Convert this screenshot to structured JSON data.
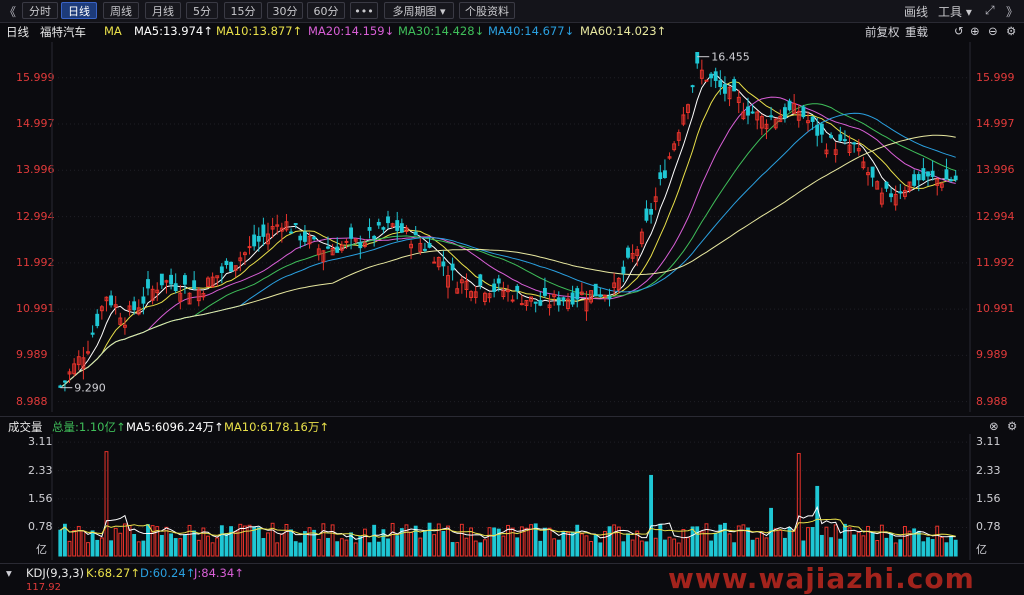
{
  "toolbar": {
    "back_icon": "chevron-left-icon",
    "tabs": [
      {
        "label": "分时",
        "active": false
      },
      {
        "label": "日线",
        "active": true
      },
      {
        "label": "周线",
        "active": false
      },
      {
        "label": "月线",
        "active": false
      },
      {
        "label": "5分",
        "active": false
      },
      {
        "label": "15分",
        "active": false
      },
      {
        "label": "30分",
        "active": false
      },
      {
        "label": "60分",
        "active": false
      },
      {
        "label": "•••",
        "active": false
      },
      {
        "label": "多周期图 ▾",
        "active": false
      },
      {
        "label": "个股资料",
        "active": false
      }
    ],
    "draw_label": "画线",
    "tools_label": "工具 ▾",
    "expand_icon": "expand-arrows-icon",
    "collapse_icon": "double-chevron-right-icon"
  },
  "price_header": {
    "period": "日线",
    "stock_name": "福特汽车",
    "ma_label": "MA",
    "ma5": "MA5:13.974↑",
    "ma10": "MA10:13.877↑",
    "ma20": "MA20:14.159↓",
    "ma30": "MA30:14.428↓",
    "ma40": "MA40:14.677↓",
    "ma60": "MA60:14.023↑",
    "pre_adjust": "前复权",
    "overlay": "重载"
  },
  "volume_header": {
    "title": "成交量",
    "total": "总量:1.10亿↑",
    "ma5": "MA5:6096.24万↑",
    "ma10": "MA10:6178.16万↑"
  },
  "kdj_header": {
    "title": "KDJ(9,3,3)",
    "k": "K:68.27↑",
    "d": "D:60.24↑",
    "j": "J:84.34↑",
    "axis_top": "117.92"
  },
  "watermark": "www.wajiazhi.com",
  "colors": {
    "up": "#e8332b",
    "down": "#1fc7d4",
    "ma5": "#ffffff",
    "ma10": "#e9e04a",
    "ma20": "#d85fd6",
    "ma30": "#3fbf5a",
    "ma40": "#2aa0e0",
    "ma60": "#e8e8a0"
  },
  "chart_data": [
    {
      "type": "candlestick",
      "title": "福特汽车 日线",
      "y_ticks": [
        15.999,
        14.997,
        13.996,
        12.994,
        11.992,
        10.991,
        9.989,
        8.988
      ],
      "ylim": [
        8.85,
        16.6
      ],
      "annotations": {
        "high": "16.455",
        "low": "9.290"
      },
      "series_lines": [
        "MA5",
        "MA10",
        "MA20",
        "MA30",
        "MA40",
        "MA60"
      ]
    },
    {
      "type": "bar",
      "title": "成交量",
      "y_ticks": [
        "3.11",
        "2.33",
        "1.56",
        "0.78"
      ],
      "y_unit": "亿",
      "ylim": [
        0,
        3.25
      ]
    }
  ]
}
